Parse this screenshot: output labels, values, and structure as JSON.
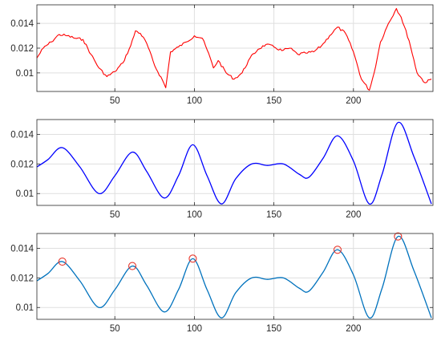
{
  "chart_data": [
    {
      "type": "line",
      "title": "",
      "xlabel": "",
      "ylabel": "",
      "xlim": [
        1,
        250
      ],
      "ylim": [
        0.0085,
        0.0155
      ],
      "x_ticks": [
        50,
        100,
        150,
        200
      ],
      "y_ticks": [
        0.01,
        0.012,
        0.014
      ],
      "grid": true,
      "color": "#ff0000",
      "x": [
        1,
        5,
        10,
        15,
        20,
        25,
        30,
        35,
        40,
        45,
        50,
        55,
        60,
        63,
        66,
        70,
        75,
        80,
        82,
        85,
        90,
        95,
        100,
        105,
        110,
        112,
        115,
        120,
        125,
        130,
        135,
        140,
        145,
        150,
        155,
        160,
        165,
        170,
        175,
        180,
        185,
        190,
        195,
        200,
        205,
        210,
        213,
        217,
        222,
        227,
        230,
        235,
        240,
        245,
        249
      ],
      "y": [
        0.0112,
        0.012,
        0.0125,
        0.0131,
        0.013,
        0.0128,
        0.0127,
        0.0115,
        0.0104,
        0.0097,
        0.0101,
        0.0108,
        0.0122,
        0.0134,
        0.0132,
        0.0124,
        0.0106,
        0.0094,
        0.0088,
        0.0117,
        0.0121,
        0.0125,
        0.013,
        0.0128,
        0.0112,
        0.0104,
        0.011,
        0.01,
        0.0095,
        0.01,
        0.0112,
        0.0119,
        0.0123,
        0.0121,
        0.0118,
        0.012,
        0.0115,
        0.0116,
        0.0117,
        0.0122,
        0.013,
        0.0137,
        0.0132,
        0.0117,
        0.0095,
        0.0086,
        0.01,
        0.0125,
        0.014,
        0.0152,
        0.0145,
        0.0126,
        0.01,
        0.0092,
        0.0095
      ]
    },
    {
      "type": "line",
      "title": "",
      "xlabel": "",
      "ylabel": "",
      "xlim": [
        1,
        250
      ],
      "ylim": [
        0.0092,
        0.015
      ],
      "x_ticks": [
        50,
        100,
        150,
        200
      ],
      "y_ticks": [
        0.01,
        0.012,
        0.014
      ],
      "grid": true,
      "color": "#0000ff",
      "x": [
        1,
        8,
        17,
        28,
        40,
        50,
        61,
        70,
        81,
        90,
        99,
        108,
        117,
        126,
        136,
        146,
        156,
        166,
        172,
        181,
        190,
        200,
        210,
        218,
        228,
        238,
        249
      ],
      "y": [
        0.0118,
        0.0123,
        0.0131,
        0.0118,
        0.01,
        0.0112,
        0.0128,
        0.0115,
        0.0097,
        0.0112,
        0.0133,
        0.0112,
        0.0093,
        0.011,
        0.012,
        0.0119,
        0.012,
        0.0113,
        0.0111,
        0.0124,
        0.0139,
        0.0122,
        0.0093,
        0.0113,
        0.0148,
        0.0125,
        0.0093
      ]
    },
    {
      "type": "line",
      "title": "",
      "xlabel": "",
      "ylabel": "",
      "xlim": [
        1,
        250
      ],
      "ylim": [
        0.0092,
        0.015
      ],
      "x_ticks": [
        50,
        100,
        150,
        200
      ],
      "y_ticks": [
        0.01,
        0.012,
        0.014
      ],
      "grid": true,
      "color": "#0072bd",
      "x": [
        1,
        8,
        17,
        28,
        40,
        50,
        61,
        70,
        81,
        90,
        99,
        108,
        117,
        126,
        136,
        146,
        156,
        166,
        172,
        181,
        190,
        200,
        210,
        218,
        228,
        238,
        249
      ],
      "y": [
        0.0118,
        0.0123,
        0.0131,
        0.0118,
        0.01,
        0.0112,
        0.0128,
        0.0115,
        0.0097,
        0.0112,
        0.0133,
        0.0112,
        0.0093,
        0.011,
        0.012,
        0.0119,
        0.012,
        0.0113,
        0.0111,
        0.0124,
        0.0139,
        0.0122,
        0.0093,
        0.0113,
        0.0148,
        0.0125,
        0.0093
      ],
      "peaks": {
        "color": "#e8352a",
        "x": [
          17,
          61,
          99,
          190,
          228
        ],
        "y": [
          0.0131,
          0.0128,
          0.0133,
          0.0139,
          0.0148
        ]
      }
    }
  ]
}
